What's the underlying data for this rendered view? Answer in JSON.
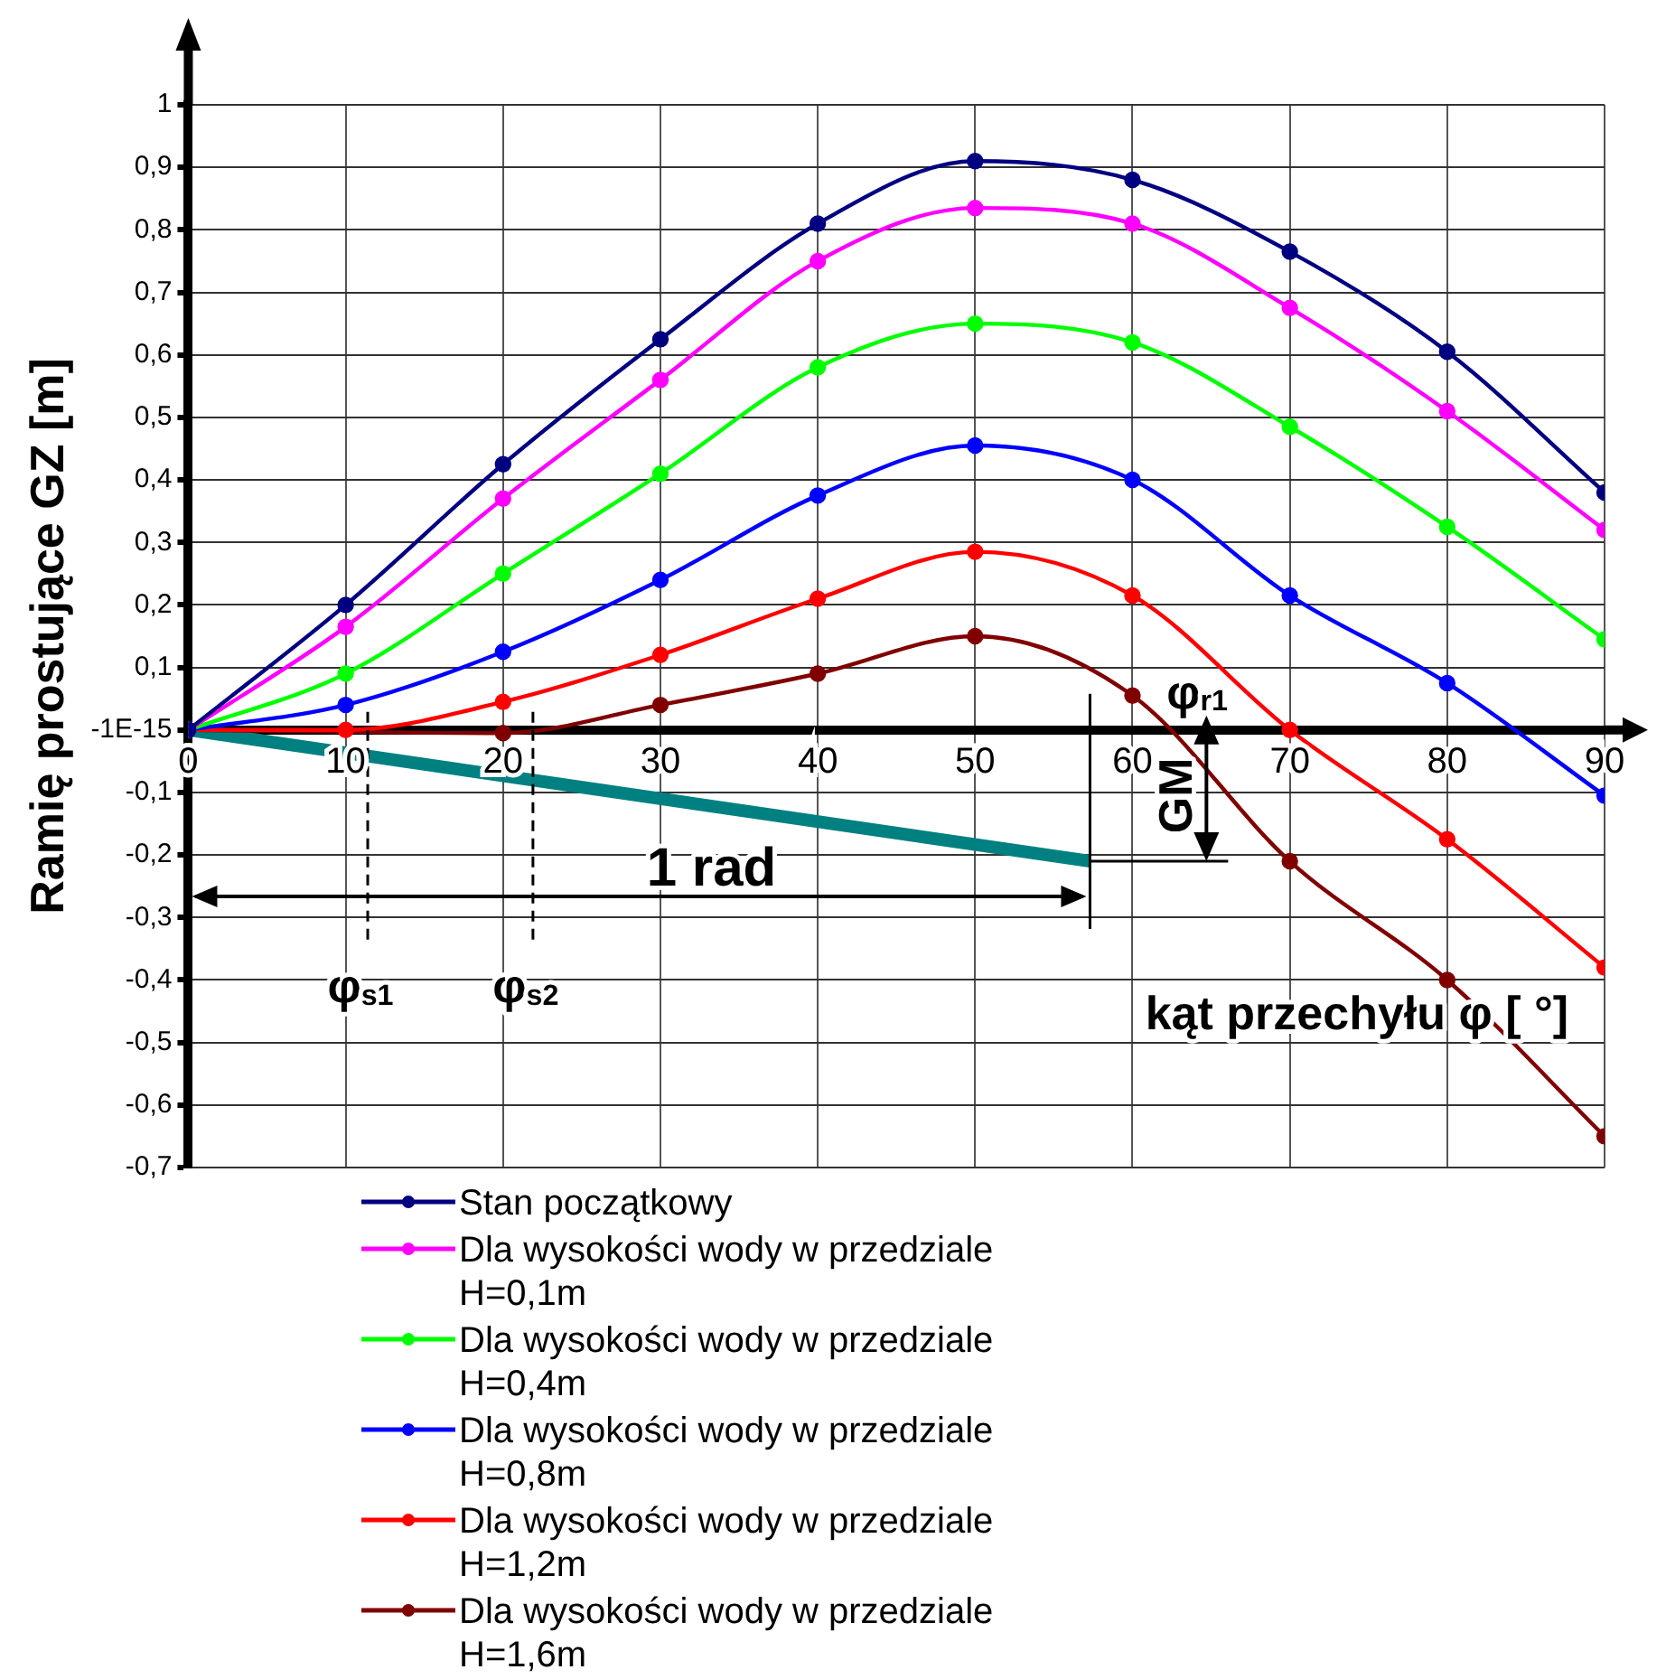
{
  "chart_data": {
    "type": "line",
    "xlabel": "kąt przechyłu φ [ °]",
    "ylabel": "Ramię prostujące GZ [m]",
    "x": [
      0,
      10,
      20,
      30,
      40,
      50,
      60,
      70,
      80,
      90
    ],
    "xlim": [
      0,
      90
    ],
    "xticks": [
      0,
      10,
      20,
      30,
      40,
      50,
      60,
      70,
      80,
      90
    ],
    "ylim": [
      -0.7,
      1
    ],
    "yticks": [
      {
        "value": -0.7,
        "label": "-0,7"
      },
      {
        "value": -0.6,
        "label": "-0,6"
      },
      {
        "value": -0.5,
        "label": "-0,5"
      },
      {
        "value": -0.4,
        "label": "-0,4"
      },
      {
        "value": -0.3,
        "label": "-0,3"
      },
      {
        "value": -0.2,
        "label": "-0,2"
      },
      {
        "value": -0.1,
        "label": "-0,1"
      },
      {
        "value": 0,
        "label": "-1E-15"
      },
      {
        "value": 0.1,
        "label": "0,1"
      },
      {
        "value": 0.2,
        "label": "0,2"
      },
      {
        "value": 0.3,
        "label": "0,3"
      },
      {
        "value": 0.4,
        "label": "0,4"
      },
      {
        "value": 0.5,
        "label": "0,5"
      },
      {
        "value": 0.6,
        "label": "0,6"
      },
      {
        "value": 0.7,
        "label": "0,7"
      },
      {
        "value": 0.8,
        "label": "0,8"
      },
      {
        "value": 0.9,
        "label": "0,9"
      },
      {
        "value": 1,
        "label": "1"
      }
    ],
    "grid": true,
    "legend": "bottom",
    "marker": "circle",
    "line_style": "solid",
    "series": [
      {
        "name": "Stan początkowy",
        "color": "#000080",
        "values": [
          0,
          0.2,
          0.425,
          0.625,
          0.81,
          0.91,
          0.88,
          0.765,
          0.605,
          0.38
        ]
      },
      {
        "name": "Dla wysokości wody w przedziale H=0,1m",
        "color": "#ff00ff",
        "values": [
          0,
          0.165,
          0.37,
          0.56,
          0.75,
          0.835,
          0.81,
          0.675,
          0.51,
          0.32
        ]
      },
      {
        "name": "Dla wysokości wody w przedziale H=0,4m",
        "color": "#00ff00",
        "values": [
          0,
          0.09,
          0.25,
          0.41,
          0.58,
          0.65,
          0.62,
          0.485,
          0.325,
          0.145
        ]
      },
      {
        "name": "Dla wysokości wody w przedziale H=0,8m",
        "color": "#0000ff",
        "values": [
          0,
          0.04,
          0.125,
          0.24,
          0.375,
          0.455,
          0.4,
          0.215,
          0.075,
          -0.105
        ]
      },
      {
        "name": "Dla wysokości wody w przedziale H=1,2m",
        "color": "#ff0000",
        "values": [
          0,
          0,
          0.045,
          0.12,
          0.21,
          0.285,
          0.215,
          0,
          -0.175,
          -0.38
        ]
      },
      {
        "name": "Dla wysokości wody w przedziale H=1,6m",
        "color": "#800000",
        "values": [
          0,
          null,
          -0.005,
          0.04,
          0.09,
          0.15,
          0.055,
          -0.21,
          -0.4,
          -0.65
        ]
      },
      {
        "type": "line",
        "color": "#008080",
        "marker": "none",
        "x": [
          0,
          57.3
        ],
        "values": [
          0,
          -0.21
        ]
      }
    ],
    "ref_lines": [
      {
        "axis": "x",
        "value": 11.4,
        "label": "φ$_{s1}$",
        "line_style": "dashed",
        "color": "#000000"
      },
      {
        "axis": "x",
        "value": 21.9,
        "label": "φ$_{s2}$",
        "line_style": "dashed",
        "color": "#000000"
      }
    ],
    "annotations": [
      "1 rad",
      "GM",
      {
        "text": "φ$_{r1}$",
        "x": 64.7,
        "y": 0
      }
    ]
  }
}
